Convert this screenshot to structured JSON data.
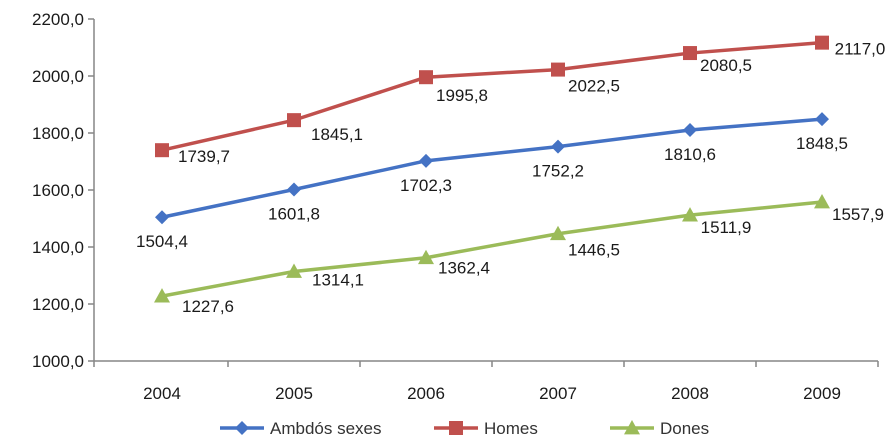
{
  "chart_data": {
    "type": "line",
    "categories": [
      "2004",
      "2005",
      "2006",
      "2007",
      "2008",
      "2009"
    ],
    "ylim": [
      1000,
      2200
    ],
    "yticks": [
      "1000,0",
      "1200,0",
      "1400,0",
      "1600,0",
      "1800,0",
      "2000,0",
      "2200,0"
    ],
    "grid": false,
    "legend_position": "bottom",
    "series": [
      {
        "name": "Ambdós sexes",
        "color": "#4472C4",
        "marker": "diamond",
        "values": [
          1504.4,
          1601.8,
          1702.3,
          1752.2,
          1810.6,
          1848.5
        ],
        "labels": [
          "1504,4",
          "1601,8",
          "1702,3",
          "1752,2",
          "1810,6",
          "1848,5"
        ]
      },
      {
        "name": "Homes",
        "color": "#C0504D",
        "marker": "square",
        "values": [
          1739.7,
          1845.1,
          1995.8,
          2022.5,
          2080.5,
          2117.0
        ],
        "labels": [
          "1739,7",
          "1845,1",
          "1995,8",
          "2022,5",
          "2080,5",
          "2117,0"
        ]
      },
      {
        "name": "Dones",
        "color": "#9BBB59",
        "marker": "triangle",
        "values": [
          1227.6,
          1314.1,
          1362.4,
          1446.5,
          1511.9,
          1557.9
        ],
        "labels": [
          "1227,6",
          "1314,1",
          "1362,4",
          "1446,5",
          "1511,9",
          "1557,9"
        ]
      }
    ]
  }
}
